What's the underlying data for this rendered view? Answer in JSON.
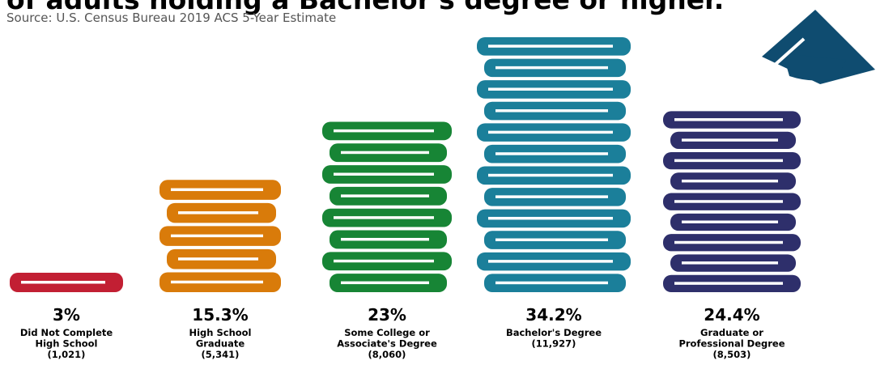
{
  "header": {
    "title": "of adults holding a Bachelor's degree or higher.",
    "source": "Source: U.S. Census Bureau 2019 ACS 5-Year Estimate"
  },
  "icons": {
    "cap": "graduation-cap-icon",
    "books": "book-stack-icon"
  },
  "colors": {
    "cap": "#0f4c70",
    "bars": [
      "#c21f33",
      "#d97b0a",
      "#178535",
      "#1b7f9a",
      "#2e2f6b"
    ]
  },
  "chart_data": {
    "type": "bar",
    "title": "of adults holding a Bachelor's degree or higher.",
    "subtitle": "Source: U.S. Census Bureau 2019 ACS 5-Year Estimate",
    "xlabel": "",
    "ylabel": "",
    "categories": [
      [
        "Did Not Complete",
        "High School"
      ],
      [
        "High School",
        "Graduate"
      ],
      [
        "Some College or",
        "Associate's Degree"
      ],
      [
        "Bachelor's Degree"
      ],
      [
        "Graduate or",
        "Professional Degree"
      ]
    ],
    "values": [
      3,
      15.3,
      23,
      34.2,
      24.4
    ],
    "value_labels": [
      "3%",
      "15.3%",
      "23%",
      "34.2%",
      "24.4%"
    ],
    "counts": [
      "(1,021)",
      "(5,341)",
      "(8,060)",
      "(11,927)",
      "(8,503)"
    ],
    "ylim": [
      0,
      34.2
    ],
    "grid": false,
    "legend": "none"
  }
}
